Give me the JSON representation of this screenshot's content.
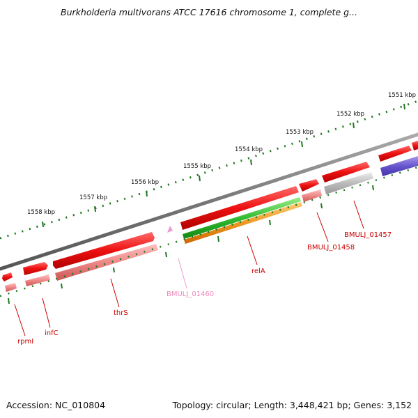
{
  "title": "Burkholderia multivorans ATCC 17616 chromosome 1, complete g...",
  "footer": {
    "accession": "Accession: NC_010804",
    "summary": "Topology: circular; Length: 3,448,421 bp; Genes: 3,152"
  },
  "scale_labels": [
    "1558 kbp",
    "1557 kbp",
    "1556 kbp",
    "1555 kbp",
    "1554 kbp",
    "1553 kbp",
    "1552 kbp",
    "1551 kbp"
  ],
  "genes": [
    {
      "label": "rpmI",
      "color": "#cc0000"
    },
    {
      "label": "infC",
      "color": "#cc0000"
    },
    {
      "label": "thrS",
      "color": "#cc0000"
    },
    {
      "label": "BMULJ_01460",
      "color": "#ee88bb"
    },
    {
      "label": "relA",
      "color": "#cc0000"
    },
    {
      "label": "BMULJ_01458",
      "color": "#cc0000"
    },
    {
      "label": "BMULJ_01457",
      "color": "#cc0000"
    }
  ],
  "colors": {
    "backbone": "#888888",
    "cds_forward": "#ee1111",
    "cds_reverse_track": "#ee8888",
    "rna": "#ee99cc",
    "gene_green": "#33bb33",
    "gene_orange": "#ee9922",
    "gene_grey": "#bbbbbb",
    "gene_blue": "#6655cc",
    "scale_ticks": "#227722"
  }
}
